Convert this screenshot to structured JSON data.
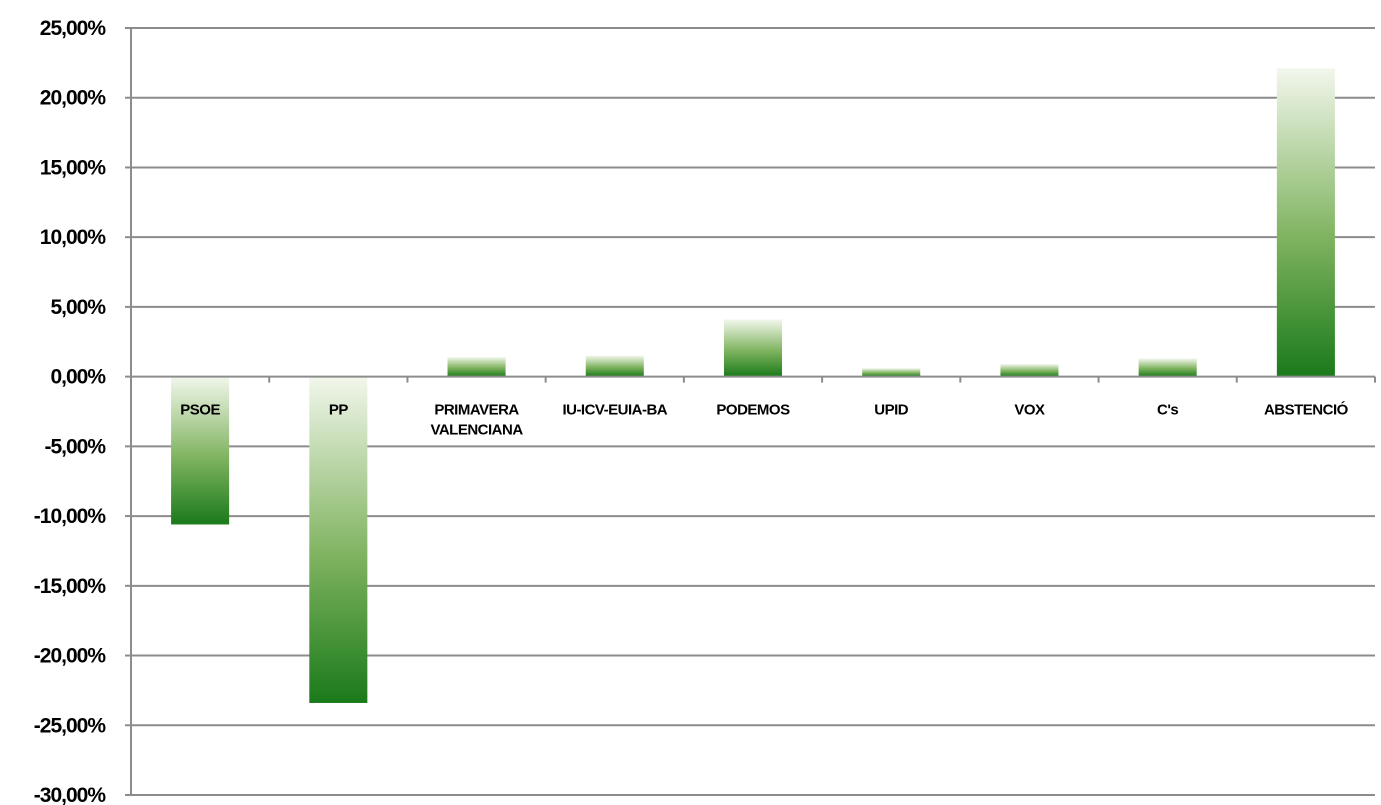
{
  "chart_data": {
    "type": "bar",
    "categories": [
      "PSOE",
      "PP",
      "PRIMAVERA VALENCIANA",
      "IU-ICV-EUIA-BA",
      "PODEMOS",
      "UPID",
      "VOX",
      "C's",
      "ABSTENCIÓ"
    ],
    "category_lines": [
      [
        "PSOE"
      ],
      [
        "PP"
      ],
      [
        "PRIMAVERA",
        "VALENCIANA"
      ],
      [
        "IU-ICV-EUIA-BA"
      ],
      [
        "PODEMOS"
      ],
      [
        "UPID"
      ],
      [
        "VOX"
      ],
      [
        "C's"
      ],
      [
        "ABSTENCIÓ"
      ]
    ],
    "values": [
      -10.6,
      -23.4,
      1.4,
      1.5,
      4.1,
      0.6,
      0.9,
      1.3,
      22.1
    ],
    "ylim": [
      -30,
      25
    ],
    "yticks": [
      25,
      20,
      15,
      10,
      5,
      0,
      -5,
      -10,
      -15,
      -20,
      -25,
      -30
    ],
    "ytick_labels": [
      "25,00%",
      "20,00%",
      "15,00%",
      "10,00%",
      "5,00%",
      "0,00%",
      "-5,00%",
      "-10,00%",
      "-15,00%",
      "-20,00%",
      "-25,00%",
      "-30,00%"
    ],
    "grid": true,
    "legend": "none",
    "title": "",
    "xlabel": "",
    "ylabel": "",
    "colors": {
      "bar_dark": "#1a7a1a",
      "bar_mid": "#7fb35f",
      "bar_light": "#f2f7ec",
      "grid": "#8c8c8c"
    }
  }
}
